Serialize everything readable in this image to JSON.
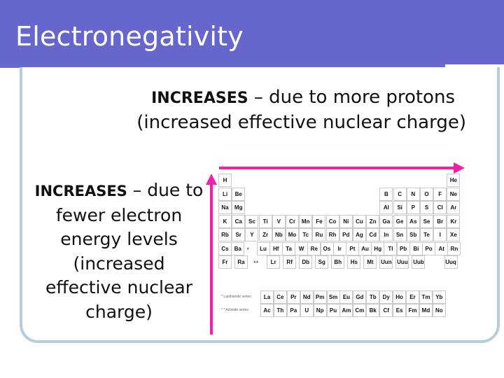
{
  "slide": {
    "title": "Electronegativity",
    "top_line1_bold": "INCREASES",
    "top_line1_rest": " – due to more protons",
    "top_line2": "(increased effective nuclear charge)",
    "left_bold": "INCREASES",
    "left_rest": " – due to fewer electron energy levels (increased effective nuclear charge)"
  },
  "colors": {
    "header": "#6666cc",
    "arrow": "#ee22aa",
    "card_border": "#b8cdd9"
  },
  "table": {
    "main": [
      [
        "H",
        "",
        "",
        "",
        "",
        "",
        "",
        "",
        "",
        "",
        "",
        "",
        "",
        "",
        "",
        "",
        "",
        "He"
      ],
      [
        "Li",
        "Be",
        "",
        "",
        "",
        "",
        "",
        "",
        "",
        "",
        "",
        "",
        "B",
        "C",
        "N",
        "O",
        "F",
        "Ne"
      ],
      [
        "Na",
        "Mg",
        "",
        "",
        "",
        "",
        "",
        "",
        "",
        "",
        "",
        "",
        "Al",
        "Si",
        "P",
        "S",
        "Cl",
        "Ar"
      ],
      [
        "K",
        "Ca",
        "Sc",
        "Ti",
        "V",
        "Cr",
        "Mn",
        "Fe",
        "Co",
        "Ni",
        "Cu",
        "Zn",
        "Ga",
        "Ge",
        "As",
        "Se",
        "Br",
        "Kr"
      ],
      [
        "Rb",
        "Sr",
        "Y",
        "Zr",
        "Nb",
        "Mo",
        "Tc",
        "Ru",
        "Rh",
        "Pd",
        "Ag",
        "Cd",
        "In",
        "Sn",
        "Sb",
        "Te",
        "I",
        "Xe"
      ],
      [
        "Cs",
        "Ba",
        "*",
        "Lu",
        "Hf",
        "Ta",
        "W",
        "Re",
        "Os",
        "Ir",
        "Pt",
        "Au",
        "Hg",
        "Tl",
        "Pb",
        "Bi",
        "Po",
        "At",
        "Rn"
      ],
      [
        "Fr",
        "Ra",
        "**",
        "Lr",
        "Rf",
        "Db",
        "Sg",
        "Bh",
        "Hs",
        "Mt",
        "Uun",
        "Uuu",
        "Uub",
        "",
        "Uuq"
      ]
    ],
    "lanthanide_label": "* Lanthanide series",
    "actinide_label": "* * Actinide series",
    "lanthanides": [
      "La",
      "Ce",
      "Pr",
      "Nd",
      "Pm",
      "Sm",
      "Eu",
      "Gd",
      "Tb",
      "Dy",
      "Ho",
      "Er",
      "Tm",
      "Yb"
    ],
    "actinides": [
      "Ac",
      "Th",
      "Pa",
      "U",
      "Np",
      "Pu",
      "Am",
      "Cm",
      "Bk",
      "Cf",
      "Es",
      "Fm",
      "Md",
      "No"
    ]
  }
}
